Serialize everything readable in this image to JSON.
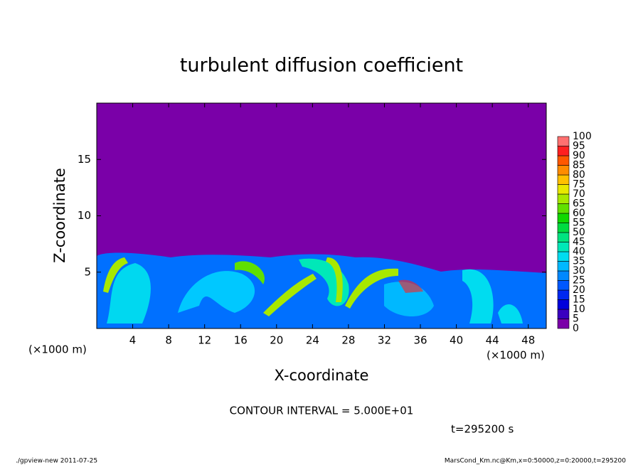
{
  "chart_data": {
    "type": "contour",
    "title": "turbulent diffusion coefficient",
    "xlabel": "X-coordinate",
    "ylabel": "Z-coordinate",
    "xunit": "(×1000 m)",
    "xunit_right": "(×1000 m)",
    "xlim": [
      0,
      50
    ],
    "ylim": [
      0,
      20
    ],
    "xticks": [
      4,
      8,
      12,
      16,
      20,
      24,
      28,
      32,
      36,
      40,
      44,
      48
    ],
    "yticks": [
      5,
      10,
      15
    ],
    "background_color": "#7a00a8",
    "contour_note": "CONTOUR INTERVAL = 5.000E+01",
    "time_label": "t=295200 s",
    "footer_left": "./gpview-new  2011-07-25",
    "footer_right": "MarsCond_Km.nc@Km,x=0:50000,z=0:20000,t=295200",
    "colorbar": {
      "levels": [
        0,
        5,
        10,
        15,
        20,
        25,
        30,
        35,
        40,
        45,
        50,
        55,
        60,
        65,
        70,
        75,
        80,
        85,
        90,
        95,
        100
      ],
      "colors": [
        "#7a00a8",
        "#3a00c0",
        "#0000dc",
        "#0028f0",
        "#0058ff",
        "#0088ff",
        "#00b8ff",
        "#00dcf0",
        "#00e8b8",
        "#00e480",
        "#00dc40",
        "#10d800",
        "#60e000",
        "#a8e800",
        "#e8e800",
        "#ffc000",
        "#ff8c00",
        "#ff5800",
        "#ff2020",
        "#ff7070"
      ]
    }
  }
}
